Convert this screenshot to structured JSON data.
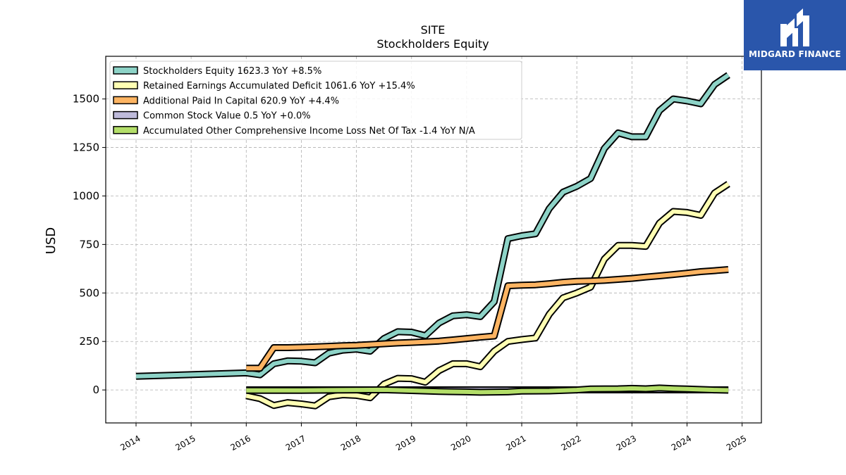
{
  "logo": {
    "text": "MIDGARD FINANCE",
    "background": "#2a56ab",
    "foreground": "#ffffff"
  },
  "chart_data": {
    "type": "line",
    "title": "SITE",
    "subtitle": "Stockholders  Equity",
    "ylabel": "USD",
    "xlabel": "",
    "xlim": [
      2013.45,
      2025.35
    ],
    "ylim": [
      -170,
      1720
    ],
    "yticks": [
      0,
      250,
      500,
      750,
      1000,
      1250,
      1500
    ],
    "xticks": [
      2014,
      2015,
      2016,
      2017,
      2018,
      2019,
      2020,
      2021,
      2022,
      2023,
      2024,
      2025
    ],
    "grid": true,
    "legend_position": "top-left",
    "series": [
      {
        "name": "Stockholders Equity",
        "legend": "Stockholders Equity  1623.3 YoY +8.5%",
        "color": "#8dd3c7",
        "x": [
          2014.0,
          2016.0,
          2016.25,
          2016.5,
          2016.75,
          2017.0,
          2017.25,
          2017.5,
          2017.75,
          2018.0,
          2018.25,
          2018.5,
          2018.75,
          2019.0,
          2019.25,
          2019.5,
          2019.75,
          2020.0,
          2020.25,
          2020.5,
          2020.75,
          2021.0,
          2021.25,
          2021.5,
          2021.75,
          2022.0,
          2022.25,
          2022.5,
          2022.75,
          2023.0,
          2023.25,
          2023.5,
          2023.75,
          2024.0,
          2024.25,
          2024.5,
          2024.75
        ],
        "y": [
          70,
          88,
          78,
          135,
          150,
          148,
          140,
          190,
          205,
          210,
          200,
          265,
          300,
          298,
          280,
          345,
          382,
          388,
          378,
          455,
          780,
          795,
          805,
          935,
          1020,
          1050,
          1090,
          1245,
          1325,
          1305,
          1305,
          1440,
          1500,
          1490,
          1475,
          1575,
          1623
        ]
      },
      {
        "name": "Retained Earnings Accumulated Deficit",
        "legend": "Retained Earnings Accumulated Deficit  1061.6 YoY +15.4%",
        "color": "#ffffb3",
        "x": [
          2016.0,
          2016.25,
          2016.5,
          2016.75,
          2017.0,
          2017.25,
          2017.5,
          2017.75,
          2018.0,
          2018.25,
          2018.5,
          2018.75,
          2019.0,
          2019.25,
          2019.5,
          2019.75,
          2020.0,
          2020.25,
          2020.5,
          2020.75,
          2021.0,
          2021.25,
          2021.5,
          2021.75,
          2022.0,
          2022.25,
          2022.5,
          2022.75,
          2023.0,
          2023.25,
          2023.5,
          2023.75,
          2024.0,
          2024.25,
          2024.5,
          2024.75
        ],
        "y": [
          -30,
          -45,
          -80,
          -65,
          -72,
          -82,
          -35,
          -25,
          -28,
          -40,
          30,
          60,
          58,
          40,
          100,
          135,
          135,
          120,
          200,
          250,
          260,
          268,
          390,
          475,
          500,
          530,
          675,
          745,
          745,
          740,
          860,
          920,
          915,
          900,
          1015,
          1062
        ]
      },
      {
        "name": "Additional Paid In Capital",
        "legend": "Additional Paid In Capital  620.9 YoY +4.4%",
        "color": "#fdb462",
        "x": [
          2016.0,
          2016.25,
          2016.5,
          2016.75,
          2017.0,
          2017.25,
          2017.5,
          2017.75,
          2018.0,
          2018.25,
          2018.5,
          2018.75,
          2019.0,
          2019.25,
          2019.5,
          2019.75,
          2020.0,
          2020.25,
          2020.5,
          2020.75,
          2021.0,
          2021.25,
          2021.5,
          2021.75,
          2022.0,
          2022.25,
          2022.5,
          2022.75,
          2023.0,
          2023.25,
          2023.5,
          2023.75,
          2024.0,
          2024.25,
          2024.5,
          2024.75
        ],
        "y": [
          112,
          112,
          218,
          218,
          220,
          222,
          225,
          228,
          230,
          234,
          238,
          242,
          245,
          248,
          252,
          258,
          265,
          272,
          278,
          537,
          540,
          542,
          548,
          555,
          560,
          562,
          565,
          570,
          575,
          582,
          588,
          595,
          602,
          610,
          615,
          621
        ]
      },
      {
        "name": "Common Stock Value",
        "legend": "Common Stock Value  0.5 YoY +0.0%",
        "color": "#bebada",
        "x": [
          2016.0,
          2024.75
        ],
        "y": [
          0.5,
          0.5
        ]
      },
      {
        "name": "Accumulated Other Comprehensive Income Loss Net Of Tax",
        "legend": "Accumulated Other Comprehensive Income Loss Net Of Tax  -1.4 YoY N/A",
        "color": "#b3de69",
        "x": [
          2016.0,
          2016.5,
          2017.0,
          2017.5,
          2018.0,
          2018.5,
          2019.0,
          2019.5,
          2020.0,
          2020.25,
          2020.75,
          2021.0,
          2021.5,
          2022.0,
          2022.25,
          2022.75,
          2023.0,
          2023.25,
          2023.5,
          2023.75,
          2024.0,
          2024.5,
          2024.75
        ],
        "y": [
          -2,
          -2,
          -2,
          -1,
          0,
          1,
          -3,
          -8,
          -10,
          -12,
          -10,
          -6,
          -5,
          0,
          5,
          6,
          8,
          6,
          10,
          7,
          5,
          0,
          -1.4
        ]
      }
    ]
  }
}
